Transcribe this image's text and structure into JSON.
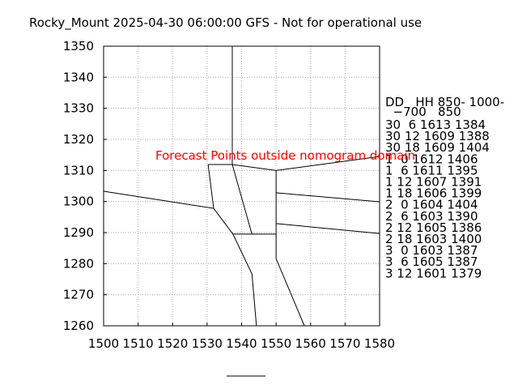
{
  "chart_data": {
    "type": "nomogram",
    "title": "Rocky_Mount 2025-04-30 06:00:00 GFS - Not for operational use",
    "annotation": "Forecast Points outside nomogram domain",
    "xlim": [
      1500,
      1580
    ],
    "xticks": [
      1500,
      1510,
      1520,
      1530,
      1540,
      1550,
      1560,
      1570,
      1580
    ],
    "ylim": [
      1260,
      1350
    ],
    "yticks": [
      1260,
      1270,
      1280,
      1290,
      1300,
      1310,
      1320,
      1330,
      1340,
      1350
    ],
    "grid": true,
    "line_color": "#000000",
    "lines": [
      {
        "x": [
          1537.3,
          1537.3
        ],
        "y": [
          1350,
          1311.9
        ]
      },
      {
        "x": [
          1537.3,
          1550,
          1580
        ],
        "y": [
          1311.9,
          1310,
          1314.5
        ]
      },
      {
        "x": [
          1530.3,
          1537.3
        ],
        "y": [
          1311.9,
          1311.9
        ]
      },
      {
        "x": [
          1530.3,
          1531.9,
          1537.5,
          1543,
          1544.3
        ],
        "y": [
          1311.9,
          1297.8,
          1289.5,
          1276.7,
          1260
        ]
      },
      {
        "x": [
          1500,
          1531.9
        ],
        "y": [
          1303.3,
          1297.8
        ]
      },
      {
        "x": [
          1537.3,
          1543
        ],
        "y": [
          1311.9,
          1289.5
        ]
      },
      {
        "x": [
          1537.5,
          1550
        ],
        "y": [
          1289.5,
          1289.5
        ]
      },
      {
        "x": [
          1550,
          1550,
          1558.2
        ],
        "y": [
          1310,
          1281.6,
          1260
        ]
      },
      {
        "x": [
          1550,
          1580
        ],
        "y": [
          1302.8,
          1299.9
        ]
      },
      {
        "x": [
          1550,
          1580
        ],
        "y": [
          1292.9,
          1289.7
        ]
      }
    ],
    "table_header": [
      "DD   HH 850- 1000-",
      "  −700   850"
    ],
    "table_rows": [
      "30  6 1613 1384",
      "30 12 1609 1388",
      "30 18 1609 1404",
      "1  0 1612 1406",
      "1  6 1611 1395",
      "1 12 1607 1391",
      "1 18 1606 1399",
      "2  0 1604 1404",
      "2  6 1603 1390",
      "2 12 1605 1386",
      "2 18 1603 1400",
      "3  0 1603 1387",
      "3  6 1605 1387",
      "3 12 1601 1379"
    ]
  }
}
